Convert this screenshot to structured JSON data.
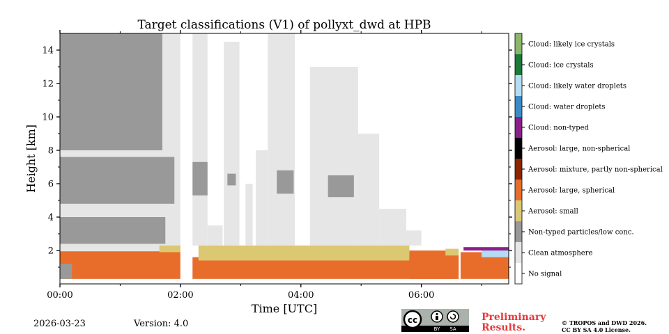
{
  "chart_data": {
    "type": "heatmap",
    "title": "Target classifications (V1) of pollyxt_dwd at HPB",
    "xlabel": "Time [UTC]",
    "ylabel": "Height [km]",
    "xlim": [
      0,
      7.45
    ],
    "ylim": [
      0,
      15
    ],
    "x_ticks": [
      0,
      2,
      4,
      6
    ],
    "x_tick_labels": [
      "00:00",
      "02:00",
      "04:00",
      "06:00"
    ],
    "y_ticks": [
      2,
      4,
      6,
      8,
      10,
      12,
      14
    ],
    "y_tick_labels": [
      "2",
      "4",
      "6",
      "8",
      "10",
      "12",
      "14"
    ],
    "gaps_hours": [
      [
        2.0,
        2.2
      ],
      [
        6.62,
        6.65
      ]
    ],
    "classes": [
      {
        "label": "No signal",
        "color": "#ffffff"
      },
      {
        "label": "Clean atmosphere",
        "color": "#e6e6e6"
      },
      {
        "label": "Non-typed particles/low conc.",
        "color": "#999999"
      },
      {
        "label": "Aerosol: small",
        "color": "#dcc872"
      },
      {
        "label": "Aerosol: large, spherical",
        "color": "#e86d2b"
      },
      {
        "label": "Aerosol: mixture, partly non-spherical",
        "color": "#8b2500"
      },
      {
        "label": "Aerosol: large, non-spherical",
        "color": "#000000"
      },
      {
        "label": "Cloud: non-typed",
        "color": "#8c1f8c"
      },
      {
        "label": "Cloud: water droplets",
        "color": "#3a8cc8"
      },
      {
        "label": "Cloud: likely water droplets",
        "color": "#b5dcf4"
      },
      {
        "label": "Cloud: ice crystals",
        "color": "#1a7a3a"
      },
      {
        "label": "Cloud: likely ice crystals",
        "color": "#88b868"
      }
    ],
    "regions": [
      {
        "cls": 1,
        "t0": 0.0,
        "t1": 2.0,
        "h0": 0.3,
        "h1": 15.0
      },
      {
        "cls": 2,
        "t0": 0.0,
        "t1": 1.75,
        "h0": 2.4,
        "h1": 4.0
      },
      {
        "cls": 2,
        "t0": 0.0,
        "t1": 1.9,
        "h0": 4.8,
        "h1": 7.6
      },
      {
        "cls": 2,
        "t0": 0.0,
        "t1": 1.7,
        "h0": 8.0,
        "h1": 15.0
      },
      {
        "cls": 1,
        "t0": 2.2,
        "t1": 2.45,
        "h0": 2.3,
        "h1": 15.0
      },
      {
        "cls": 2,
        "t0": 2.2,
        "t1": 2.45,
        "h0": 5.3,
        "h1": 7.3
      },
      {
        "cls": 1,
        "t0": 2.45,
        "t1": 2.7,
        "h0": 2.3,
        "h1": 3.5
      },
      {
        "cls": 1,
        "t0": 2.72,
        "t1": 2.98,
        "h0": 2.3,
        "h1": 14.5
      },
      {
        "cls": 2,
        "t0": 2.78,
        "t1": 2.92,
        "h0": 5.9,
        "h1": 6.6
      },
      {
        "cls": 1,
        "t0": 3.08,
        "t1": 3.2,
        "h0": 2.3,
        "h1": 6.0
      },
      {
        "cls": 1,
        "t0": 3.25,
        "t1": 3.45,
        "h0": 2.3,
        "h1": 8.0
      },
      {
        "cls": 1,
        "t0": 3.45,
        "t1": 3.9,
        "h0": 2.3,
        "h1": 15.0
      },
      {
        "cls": 2,
        "t0": 3.6,
        "t1": 3.88,
        "h0": 5.4,
        "h1": 6.8
      },
      {
        "cls": 1,
        "t0": 4.15,
        "t1": 4.95,
        "h0": 2.3,
        "h1": 13.0
      },
      {
        "cls": 2,
        "t0": 4.45,
        "t1": 4.88,
        "h0": 5.2,
        "h1": 6.5
      },
      {
        "cls": 1,
        "t0": 4.95,
        "t1": 5.3,
        "h0": 2.3,
        "h1": 9.0
      },
      {
        "cls": 1,
        "t0": 5.3,
        "t1": 5.75,
        "h0": 2.3,
        "h1": 4.5
      },
      {
        "cls": 1,
        "t0": 5.75,
        "t1": 6.0,
        "h0": 2.3,
        "h1": 3.2
      },
      {
        "cls": 4,
        "t0": 0.0,
        "t1": 2.0,
        "h0": 0.3,
        "h1": 1.95
      },
      {
        "cls": 2,
        "t0": 0.0,
        "t1": 0.2,
        "h0": 0.3,
        "h1": 1.2
      },
      {
        "cls": 3,
        "t0": 1.65,
        "t1": 2.0,
        "h0": 1.9,
        "h1": 2.3
      },
      {
        "cls": 4,
        "t0": 2.2,
        "t1": 6.62,
        "h0": 0.3,
        "h1": 1.6
      },
      {
        "cls": 3,
        "t0": 2.3,
        "t1": 5.8,
        "h0": 1.4,
        "h1": 2.3
      },
      {
        "cls": 4,
        "t0": 5.8,
        "t1": 6.62,
        "h0": 0.3,
        "h1": 2.0
      },
      {
        "cls": 3,
        "t0": 6.4,
        "t1": 6.62,
        "h0": 1.7,
        "h1": 2.1
      },
      {
        "cls": 4,
        "t0": 6.65,
        "t1": 7.45,
        "h0": 0.3,
        "h1": 1.9
      },
      {
        "cls": 9,
        "t0": 7.0,
        "t1": 7.45,
        "h0": 1.6,
        "h1": 2.1
      },
      {
        "cls": 7,
        "t0": 6.7,
        "t1": 7.45,
        "h0": 2.0,
        "h1": 2.2
      }
    ]
  },
  "footer": {
    "date": "2026-03-23",
    "version": "Version: 4.0",
    "preliminary": "Preliminary Results.",
    "copyright_line1": "© TROPOS and DWD 2026.",
    "copyright_line2": "CC BY SA 4.0 License.",
    "cc_text": "cc",
    "cc_by": "BY",
    "cc_sa": "SA"
  }
}
